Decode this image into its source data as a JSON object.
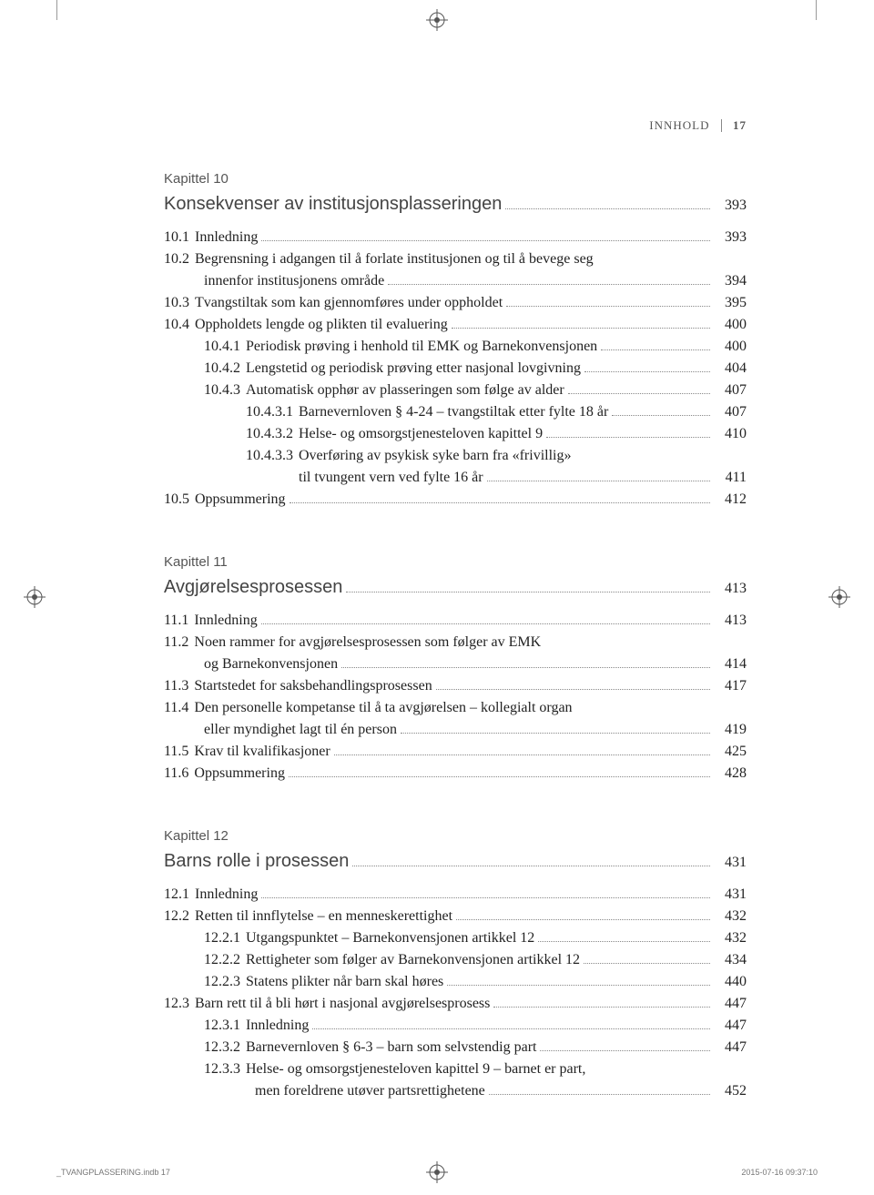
{
  "header": {
    "label": "INNHOLD",
    "page": "17"
  },
  "chapters": [
    {
      "label": "Kapittel 10",
      "title": "Konsekvenser av institusjonsplasseringen",
      "title_page": "393",
      "entries": [
        {
          "indent": 1,
          "num": "10.1",
          "label": "Innledning",
          "page": "393"
        },
        {
          "indent": 1,
          "num": "10.2",
          "label": "Begrensning i adgangen til å forlate institusjonen og til å bevege seg",
          "cont": "innenfor institusjonens område",
          "page": "394"
        },
        {
          "indent": 1,
          "num": "10.3",
          "label": "Tvangstiltak som kan gjennomføres under oppholdet",
          "page": "395"
        },
        {
          "indent": 1,
          "num": "10.4",
          "label": "Oppholdets lengde og plikten til evaluering",
          "page": "400"
        },
        {
          "indent": 2,
          "num": "10.4.1",
          "label": "Periodisk prøving i henhold til EMK og Barnekonvensjonen",
          "page": "400"
        },
        {
          "indent": 2,
          "num": "10.4.2",
          "label": "Lengstetid og periodisk prøving etter nasjonal lovgivning",
          "page": "404"
        },
        {
          "indent": 2,
          "num": "10.4.3",
          "label": "Automatisk opphør av plasseringen som følge av alder",
          "page": "407"
        },
        {
          "indent": 3,
          "num": "10.4.3.1",
          "label": "Barnevernloven § 4-24 – tvangstiltak etter fylte 18 år",
          "page": "407"
        },
        {
          "indent": 3,
          "num": "10.4.3.2",
          "label": "Helse- og omsorgstjenesteloven kapittel 9",
          "page": "410"
        },
        {
          "indent": 3,
          "num": "10.4.3.3",
          "label": "Overføring av psykisk syke barn fra «frivillig»",
          "cont3": "til tvungent vern ved fylte 16 år",
          "page": "411"
        },
        {
          "indent": 1,
          "num": "10.5",
          "label": "Oppsummering",
          "page": "412"
        }
      ]
    },
    {
      "label": "Kapittel 11",
      "title": "Avgjørelsesprosessen",
      "title_page": "413",
      "entries": [
        {
          "indent": 1,
          "num": "11.1",
          "label": "Innledning",
          "page": "413"
        },
        {
          "indent": 1,
          "num": "11.2",
          "label": "Noen rammer for avgjørelsesprosessen som følger av EMK",
          "cont": "og Barnekonvensjonen",
          "page": "414"
        },
        {
          "indent": 1,
          "num": "11.3",
          "label": "Startstedet for saksbehandlingsprosessen",
          "page": "417"
        },
        {
          "indent": 1,
          "num": "11.4",
          "label": "Den personelle kompetanse til å ta avgjørelsen – kollegialt organ",
          "cont": "eller myndighet lagt til én person",
          "page": "419"
        },
        {
          "indent": 1,
          "num": "11.5",
          "label": "Krav til kvalifikasjoner",
          "page": "425"
        },
        {
          "indent": 1,
          "num": "11.6",
          "label": "Oppsummering",
          "page": "428"
        }
      ]
    },
    {
      "label": "Kapittel 12",
      "title": "Barns rolle i prosessen",
      "title_page": "431",
      "entries": [
        {
          "indent": 1,
          "num": "12.1",
          "label": "Innledning",
          "page": "431"
        },
        {
          "indent": 1,
          "num": "12.2",
          "label": "Retten til innflytelse – en menneskerettighet",
          "page": "432"
        },
        {
          "indent": 2,
          "num": "12.2.1",
          "label": "Utgangspunktet – Barnekonvensjonen artikkel 12",
          "page": "432"
        },
        {
          "indent": 2,
          "num": "12.2.2",
          "label": "Rettigheter som følger av Barnekonvensjonen artikkel 12",
          "page": "434"
        },
        {
          "indent": 2,
          "num": "12.2.3",
          "label": "Statens plikter når barn skal høres",
          "page": "440"
        },
        {
          "indent": 1,
          "num": "12.3",
          "label": "Barn rett til å bli hørt i nasjonal avgjørelsesprosess",
          "page": "447"
        },
        {
          "indent": 2,
          "num": "12.3.1",
          "label": "Innledning",
          "page": "447"
        },
        {
          "indent": 2,
          "num": "12.3.2",
          "label": "Barnevernloven § 6-3 – barn som selvstendig part",
          "page": "447"
        },
        {
          "indent": 2,
          "num": "12.3.3",
          "label": "Helse- og omsorgstjenesteloven kapittel 9 – barnet er part,",
          "cont2": "men foreldrene utøver partsrettighetene",
          "page": "452"
        }
      ]
    }
  ],
  "footer": {
    "left": "_TVANGPLASSERING.indb   17",
    "right": "2015-07-16   09:37:10"
  },
  "colors": {
    "bg": "#ffffff",
    "text": "#333333",
    "dots": "#888888"
  }
}
